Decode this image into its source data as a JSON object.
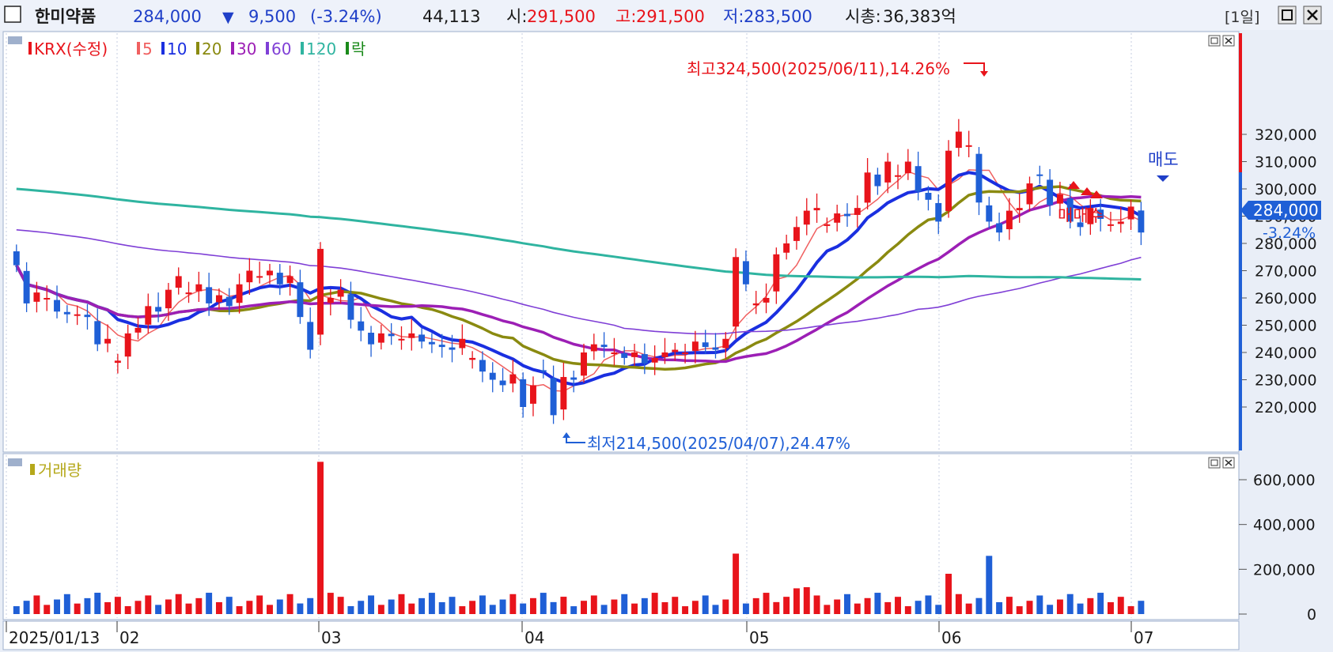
{
  "header": {
    "stock_name": "한미약품",
    "price": "284,000",
    "change_arrow": "▼",
    "change": "9,500",
    "change_pct": "(-3.24%)",
    "volume": "44,113",
    "open_label": "시:",
    "open": "291,500",
    "high_label": "고:",
    "high": "291,500",
    "low_label": "저:",
    "low": "283,500",
    "mcap_label": "시총:",
    "mcap": "36,383억",
    "period_button": "[1일]",
    "colors": {
      "up": "#e8141b",
      "down": "#1f5fd6",
      "label": "#1a1a1a"
    }
  },
  "price_panel": {
    "legend": [
      {
        "label": "KRX(수정)",
        "color": "#e8141b"
      },
      {
        "label": "5",
        "color": "#f06060"
      },
      {
        "label": "10",
        "color": "#1a2fe0"
      },
      {
        "label": "20",
        "color": "#8a8a10"
      },
      {
        "label": "30",
        "color": "#9c1fb5"
      },
      {
        "label": "60",
        "color": "#7f3fd6"
      },
      {
        "label": "120",
        "color": "#2fb4a0"
      },
      {
        "label": "락",
        "color": "#1a8a1a"
      }
    ],
    "max_annotation": "최고324,500(2025/06/11),14.26%",
    "min_annotation": "최저214,500(2025/04/07),24.47%",
    "sell_label": "매도",
    "buy_label": "매매수",
    "current_price_tag": "284,000",
    "current_change_tag": "-3.24%"
  },
  "volume_panel": {
    "legend_label": "거래량"
  },
  "chart_data": {
    "type": "candlestick",
    "x_labels": [
      "2025/01/13",
      "02",
      "03",
      "04",
      "05",
      "06",
      "07"
    ],
    "y_ticks": [
      220000,
      230000,
      240000,
      250000,
      260000,
      270000,
      280000,
      290000,
      300000,
      310000,
      320000
    ],
    "y_tick_labels": [
      "220,000",
      "230,000",
      "240,000",
      "250,000",
      "260,000",
      "270,000",
      "280,000",
      "290,000",
      "300,000",
      "310,000",
      "320,000"
    ],
    "volume_ticks": [
      0,
      200000,
      400000,
      600000
    ],
    "volume_tick_labels": [
      "0",
      "200,000",
      "400,000",
      "600,000"
    ],
    "close": [
      272000,
      258000,
      262000,
      260000,
      255000,
      254000,
      254000,
      253000,
      243000,
      245000,
      237000,
      247000,
      249000,
      257000,
      255000,
      263000,
      268000,
      262000,
      265000,
      258000,
      261000,
      257000,
      265000,
      270000,
      268000,
      270000,
      265000,
      268000,
      253000,
      241000,
      278000,
      260000,
      263000,
      252000,
      248000,
      243000,
      247000,
      246000,
      245000,
      247000,
      244000,
      243000,
      242000,
      241000,
      245000,
      238000,
      233000,
      230000,
      228000,
      232000,
      220000,
      228000,
      233000,
      217000,
      231000,
      230000,
      240000,
      243000,
      242000,
      240000,
      238000,
      240000,
      236000,
      238000,
      240000,
      241000,
      240000,
      244000,
      242000,
      241000,
      245000,
      275000,
      265000,
      258000,
      260000,
      276000,
      280000,
      286000,
      292000,
      293000,
      287000,
      291000,
      290000,
      293000,
      306000,
      301000,
      310000,
      305000,
      310000,
      299000,
      296000,
      288000,
      314000,
      321000,
      316000,
      295000,
      288000,
      284000,
      292000,
      293000,
      302000,
      305000,
      294000,
      298000,
      288000,
      286000,
      293000,
      289000,
      287000,
      288000,
      293500,
      284000
    ],
    "ma_periods": [
      5,
      10,
      20,
      30,
      60,
      120
    ],
    "volume_note": "Volume bars colored by candle direction; peak ~680,000 in early March, ~270,000 on 2025/05/02, ~260,000 in mid June."
  }
}
